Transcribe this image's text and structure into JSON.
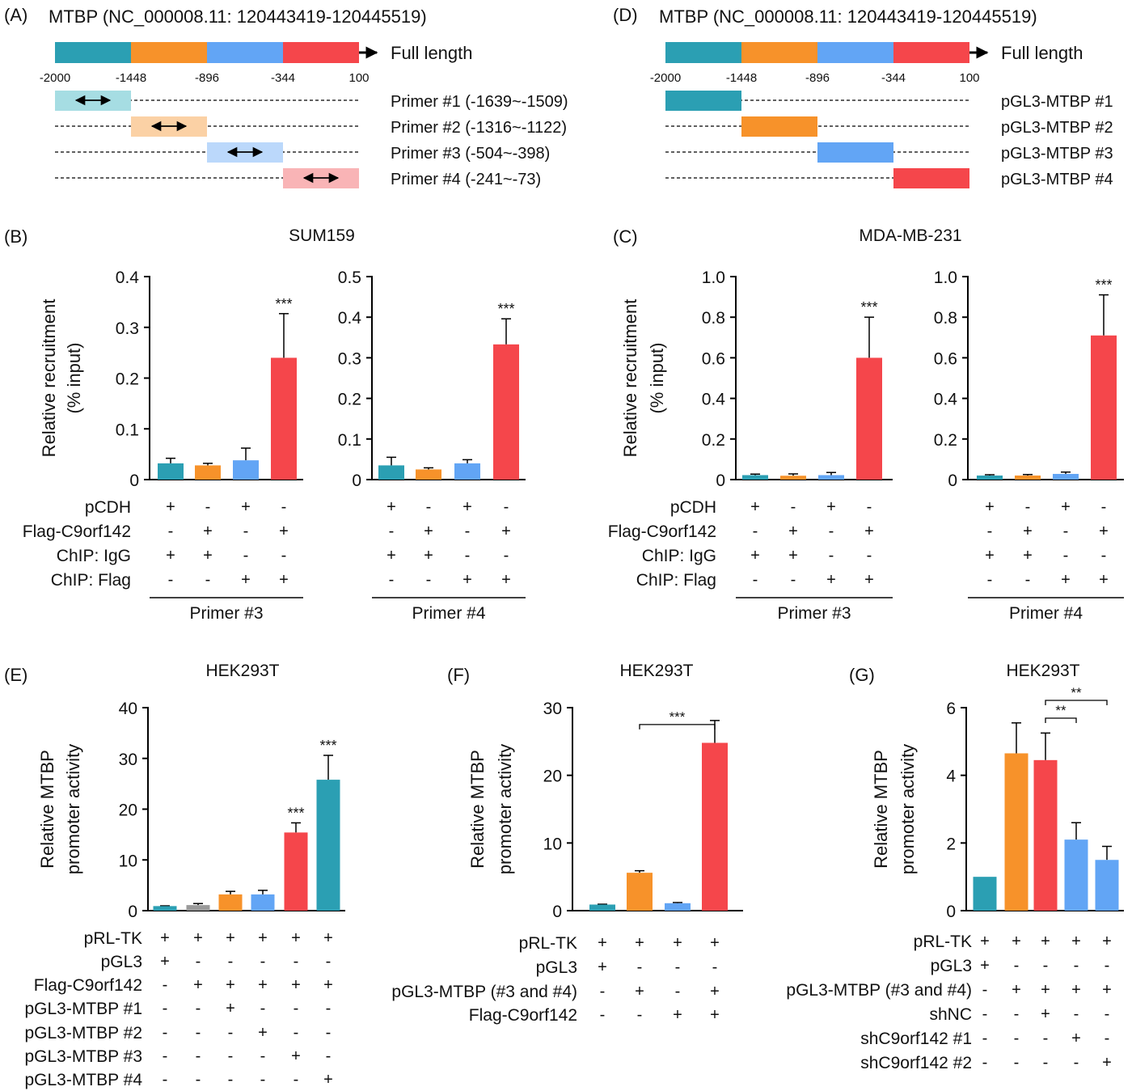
{
  "colors": {
    "teal": "#2b9fb3",
    "orange": "#f7922a",
    "blue": "#62a5f5",
    "red": "#f5464b",
    "gray": "#9a9a9a",
    "light_teal": "#a6dde3",
    "light_orange": "#fbd1a5",
    "light_blue": "#bbd8fb",
    "light_red": "#f9b4b6"
  },
  "panels": {
    "A": {
      "label": "(A)",
      "title": "MTBP (NC_000008.11: 120443419-120445519)",
      "full_length_label": "Full length",
      "ticks": [
        "-2000",
        "-1448",
        "-896",
        "-344",
        "100"
      ],
      "rows": [
        "Primer #1 (-1639~-1509)",
        "Primer #2 (-1316~-1122)",
        "Primer #3 (-504~-398)",
        "Primer #4 (-241~-73)"
      ]
    },
    "D": {
      "label": "(D)",
      "title": "MTBP (NC_000008.11: 120443419-120445519)",
      "full_length_label": "Full length",
      "ticks": [
        "-2000",
        "-1448",
        "-896",
        "-344",
        "100"
      ],
      "rows": [
        "pGL3-MTBP #1",
        "pGL3-MTBP #2",
        "pGL3-MTBP #3",
        "pGL3-MTBP #4"
      ]
    },
    "B": {
      "label": "(B)",
      "title": "SUM159"
    },
    "C": {
      "label": "(C)",
      "title": "MDA-MB-231"
    },
    "E": {
      "label": "(E)",
      "title": "HEK293T"
    },
    "F": {
      "label": "(F)",
      "title": "HEK293T"
    },
    "G": {
      "label": "(G)",
      "title": "HEK293T"
    }
  },
  "chart_data": [
    {
      "id": "B1",
      "type": "bar",
      "panel": "B",
      "ylabel": "Relative recruitment\n(% input)",
      "ylim": [
        0,
        0.4
      ],
      "yticks": [
        "0",
        "0.1",
        "0.2",
        "0.3",
        "0.4"
      ],
      "values": [
        0.032,
        0.028,
        0.038,
        0.24
      ],
      "errors": [
        0.01,
        0.004,
        0.024,
        0.087
      ],
      "colors": [
        "teal",
        "orange",
        "blue",
        "red"
      ],
      "annotations": [
        {
          "bar": 3,
          "text": "***"
        }
      ],
      "rows": [
        {
          "label": "pCDH",
          "signs": [
            "+",
            "-",
            "+",
            "-"
          ]
        },
        {
          "label": "Flag-C9orf142",
          "signs": [
            "-",
            "+",
            "-",
            "+"
          ]
        },
        {
          "label": "ChIP: IgG",
          "signs": [
            "+",
            "+",
            "-",
            "-"
          ]
        },
        {
          "label": "ChIP: Flag",
          "signs": [
            "-",
            "-",
            "+",
            "+"
          ]
        }
      ],
      "group_label": "Primer #3"
    },
    {
      "id": "B2",
      "type": "bar",
      "panel": "B",
      "ylabel": "",
      "ylim": [
        0,
        0.5
      ],
      "yticks": [
        "0",
        "0.1",
        "0.2",
        "0.3",
        "0.4",
        "0.5"
      ],
      "values": [
        0.035,
        0.025,
        0.04,
        0.333
      ],
      "errors": [
        0.02,
        0.004,
        0.009,
        0.063
      ],
      "colors": [
        "teal",
        "orange",
        "blue",
        "red"
      ],
      "annotations": [
        {
          "bar": 3,
          "text": "***"
        }
      ],
      "rows": [
        {
          "label": "",
          "signs": [
            "+",
            "-",
            "+",
            "-"
          ]
        },
        {
          "label": "",
          "signs": [
            "-",
            "+",
            "-",
            "+"
          ]
        },
        {
          "label": "",
          "signs": [
            "+",
            "+",
            "-",
            "-"
          ]
        },
        {
          "label": "",
          "signs": [
            "-",
            "-",
            "+",
            "+"
          ]
        }
      ],
      "group_label": "Primer #4"
    },
    {
      "id": "C1",
      "type": "bar",
      "panel": "C",
      "ylabel": "Relative recruitment\n(% input)",
      "ylim": [
        0,
        1.0
      ],
      "yticks": [
        "0",
        "0.2",
        "0.4",
        "0.6",
        "0.8",
        "1.0"
      ],
      "values": [
        0.022,
        0.019,
        0.022,
        0.6
      ],
      "errors": [
        0.005,
        0.009,
        0.013,
        0.2
      ],
      "colors": [
        "teal",
        "orange",
        "blue",
        "red"
      ],
      "annotations": [
        {
          "bar": 3,
          "text": "***"
        }
      ],
      "rows": [
        {
          "label": "pCDH",
          "signs": [
            "+",
            "-",
            "+",
            "-"
          ]
        },
        {
          "label": "Flag-C9orf142",
          "signs": [
            "-",
            "+",
            "-",
            "+"
          ]
        },
        {
          "label": "ChIP: IgG",
          "signs": [
            "+",
            "+",
            "-",
            "-"
          ]
        },
        {
          "label": "ChIP: Flag",
          "signs": [
            "-",
            "-",
            "+",
            "+"
          ]
        }
      ],
      "group_label": "Primer #3"
    },
    {
      "id": "C2",
      "type": "bar",
      "panel": "C",
      "ylabel": "",
      "ylim": [
        0,
        1.0
      ],
      "yticks": [
        "0",
        "0.2",
        "0.4",
        "0.6",
        "0.8",
        "1.0"
      ],
      "values": [
        0.02,
        0.02,
        0.028,
        0.71
      ],
      "errors": [
        0.004,
        0.005,
        0.009,
        0.2
      ],
      "colors": [
        "teal",
        "orange",
        "blue",
        "red"
      ],
      "annotations": [
        {
          "bar": 3,
          "text": "***"
        }
      ],
      "rows": [
        {
          "label": "",
          "signs": [
            "+",
            "-",
            "+",
            "-"
          ]
        },
        {
          "label": "",
          "signs": [
            "-",
            "+",
            "-",
            "+"
          ]
        },
        {
          "label": "",
          "signs": [
            "+",
            "+",
            "-",
            "-"
          ]
        },
        {
          "label": "",
          "signs": [
            "-",
            "-",
            "+",
            "+"
          ]
        }
      ],
      "group_label": "Primer #4"
    },
    {
      "id": "E",
      "type": "bar",
      "panel": "E",
      "ylabel": "Relative MTBP\npromoter activity",
      "ylim": [
        0,
        40
      ],
      "yticks": [
        "0",
        "10",
        "20",
        "30",
        "40"
      ],
      "values": [
        0.9,
        1.1,
        3.2,
        3.2,
        15.4,
        25.8
      ],
      "errors": [
        0.05,
        0.3,
        0.6,
        0.8,
        1.9,
        4.8
      ],
      "colors": [
        "teal",
        "gray",
        "orange",
        "blue",
        "red",
        "teal"
      ],
      "annotations": [
        {
          "bar": 4,
          "text": "***"
        },
        {
          "bar": 5,
          "text": "***"
        }
      ],
      "rows": [
        {
          "label": "pRL-TK",
          "signs": [
            "+",
            "+",
            "+",
            "+",
            "+",
            "+"
          ]
        },
        {
          "label": "pGL3",
          "signs": [
            "+",
            "-",
            "-",
            "-",
            "-",
            "-"
          ]
        },
        {
          "label": "Flag-C9orf142",
          "signs": [
            "-",
            "+",
            "+",
            "+",
            "+",
            "+"
          ]
        },
        {
          "label": "pGL3-MTBP #1",
          "signs": [
            "-",
            "-",
            "+",
            "-",
            "-",
            "-"
          ]
        },
        {
          "label": "pGL3-MTBP #2",
          "signs": [
            "-",
            "-",
            "-",
            "+",
            "-",
            "-"
          ]
        },
        {
          "label": "pGL3-MTBP #3",
          "signs": [
            "-",
            "-",
            "-",
            "-",
            "+",
            "-"
          ]
        },
        {
          "label": "pGL3-MTBP #4",
          "signs": [
            "-",
            "-",
            "-",
            "-",
            "-",
            "+"
          ]
        }
      ]
    },
    {
      "id": "F",
      "type": "bar",
      "panel": "F",
      "ylabel": "Relative MTBP\npromoter activity",
      "ylim": [
        0,
        30
      ],
      "yticks": [
        "0",
        "10",
        "20",
        "30"
      ],
      "values": [
        0.9,
        5.6,
        1.1,
        24.8
      ],
      "errors": [
        0.05,
        0.3,
        0.1,
        3.3
      ],
      "colors": [
        "teal",
        "orange",
        "blue",
        "red"
      ],
      "brackets": [
        {
          "from": 1,
          "to": 3,
          "text": "***"
        }
      ],
      "rows": [
        {
          "label": "pRL-TK",
          "signs": [
            "+",
            "+",
            "+",
            "+"
          ]
        },
        {
          "label": "pGL3",
          "signs": [
            "+",
            "-",
            "-",
            "-"
          ]
        },
        {
          "label": "pGL3-MTBP (#3 and #4)",
          "signs": [
            "-",
            "+",
            "-",
            "+"
          ]
        },
        {
          "label": "Flag-C9orf142",
          "signs": [
            "-",
            "-",
            "+",
            "+"
          ]
        }
      ]
    },
    {
      "id": "G",
      "type": "bar",
      "panel": "G",
      "ylabel": "Relative MTBP\npromoter activity",
      "ylim": [
        0,
        6
      ],
      "yticks": [
        "0",
        "2",
        "4",
        "6"
      ],
      "values": [
        1.0,
        4.65,
        4.45,
        2.1,
        1.5
      ],
      "errors": [
        0.0,
        0.9,
        0.8,
        0.5,
        0.4
      ],
      "colors": [
        "teal",
        "orange",
        "red",
        "blue",
        "blue"
      ],
      "brackets": [
        {
          "from": 2,
          "to": 3,
          "text": "**"
        },
        {
          "from": 2,
          "to": 4,
          "text": "**"
        }
      ],
      "rows": [
        {
          "label": "pRL-TK",
          "signs": [
            "+",
            "+",
            "+",
            "+",
            "+"
          ]
        },
        {
          "label": "pGL3",
          "signs": [
            "+",
            "-",
            "-",
            "-",
            "-"
          ]
        },
        {
          "label": "pGL3-MTBP (#3 and #4)",
          "signs": [
            "-",
            "+",
            "+",
            "+",
            "+"
          ]
        },
        {
          "label": "shNC",
          "signs": [
            "-",
            "-",
            "+",
            "-",
            "-"
          ]
        },
        {
          "label": "shC9orf142 #1",
          "signs": [
            "-",
            "-",
            "-",
            "+",
            "-"
          ]
        },
        {
          "label": "shC9orf142 #2",
          "signs": [
            "-",
            "-",
            "-",
            "-",
            "+"
          ]
        }
      ]
    }
  ]
}
